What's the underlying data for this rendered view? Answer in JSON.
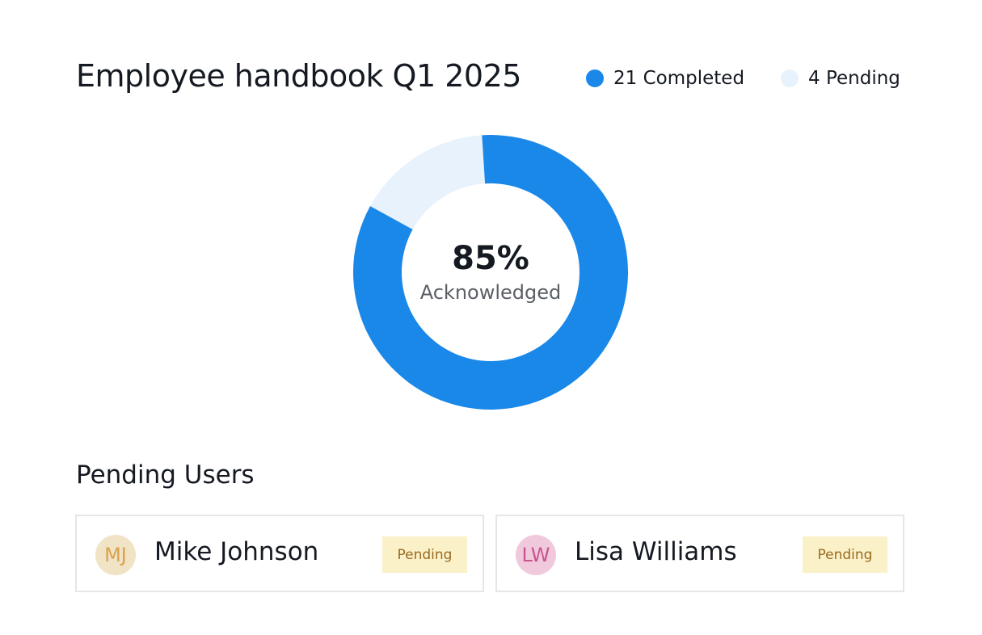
{
  "chart_data": {
    "type": "donut",
    "title": "Employee handbook Q1 2025",
    "categories": [
      "Completed",
      "Pending"
    ],
    "values": [
      21,
      4
    ],
    "colors": [
      "#1a88e8",
      "#e8f2fc"
    ],
    "center_label": "85%",
    "center_caption": "Acknowledged"
  },
  "pending_users": {
    "title": "Pending Users",
    "users": [
      {
        "initials": "MJ",
        "name": "Mike Johnson",
        "status": "Pending"
      },
      {
        "initials": "LW",
        "name": "Lisa Williams",
        "status": "Pending"
      }
    ]
  }
}
